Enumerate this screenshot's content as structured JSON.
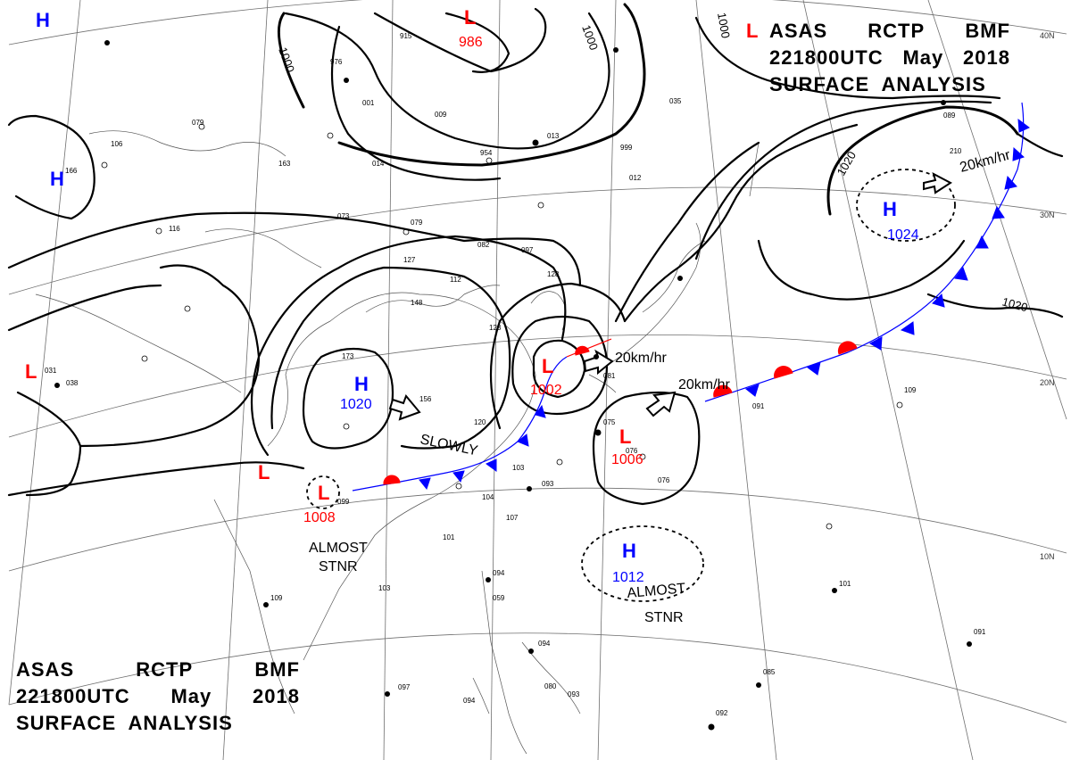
{
  "header": {
    "line1": [
      "ASAS",
      "RCTP",
      "BMF"
    ],
    "line2": [
      "221800UTC",
      "May",
      "2018"
    ],
    "line3": "SURFACE  ANALYSIS"
  },
  "footer": {
    "line1": [
      "ASAS",
      "RCTP",
      "BMF"
    ],
    "line2": [
      "221800UTC",
      "May",
      "2018"
    ],
    "line3": "SURFACE  ANALYSIS"
  },
  "lat_labels": [
    "40N",
    "30N",
    "20N",
    "10N"
  ],
  "colors": {
    "high": "#0000ff",
    "low": "#ff0000",
    "isobar": "#000000",
    "grid": "#555555"
  },
  "isobars": [
    "1000",
    "1000",
    "1000",
    "1020",
    "1020"
  ],
  "pressure_systems": [
    {
      "type": "L",
      "value": "986"
    },
    {
      "type": "H",
      "value": "1020"
    },
    {
      "type": "L",
      "value": "1002"
    },
    {
      "type": "L",
      "value": "1006"
    },
    {
      "type": "L",
      "value": "1008"
    },
    {
      "type": "H",
      "value": "1012"
    },
    {
      "type": "H",
      "value": "1024"
    },
    {
      "type": "H",
      "value": ""
    },
    {
      "type": "H",
      "value": ""
    },
    {
      "type": "L",
      "value": ""
    },
    {
      "type": "L",
      "value": ""
    },
    {
      "type": "L",
      "value": ""
    }
  ],
  "motion_labels": [
    "SLOWLY",
    "20km/hr",
    "20km/hr",
    "20km/hr",
    "ALMOST",
    "STNR",
    "ALMOST",
    "STNR"
  ],
  "station_obs": [
    "976",
    "915",
    "001",
    "009",
    "013",
    "954",
    "014",
    "163",
    "079",
    "106",
    "073",
    "079",
    "082",
    "097",
    "127",
    "112",
    "148",
    "123",
    "156",
    "173",
    "120",
    "099",
    "103",
    "093",
    "104",
    "107",
    "101",
    "094",
    "059",
    "103",
    "109",
    "097",
    "094",
    "094",
    "093",
    "080",
    "081",
    "075",
    "076",
    "076",
    "091",
    "109",
    "101",
    "091",
    "085",
    "092",
    "128",
    "116",
    "031",
    "038",
    "012",
    "999",
    "035",
    "089",
    "210",
    "166"
  ]
}
